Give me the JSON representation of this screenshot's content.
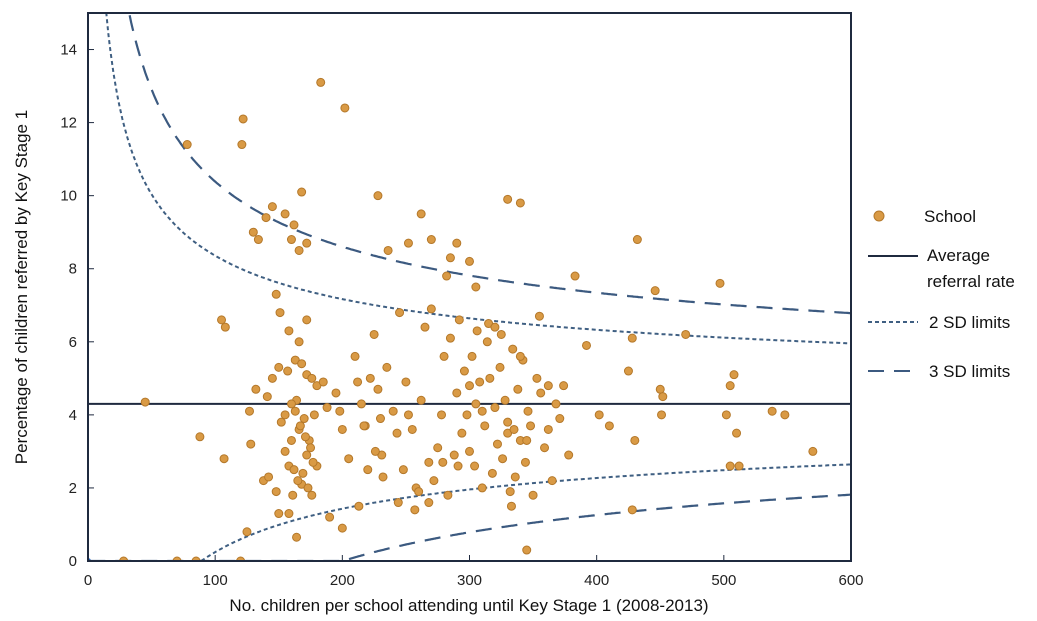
{
  "colors": {
    "point_fill": "#D99A45",
    "point_stroke": "#B4782A",
    "average_line": "#1F2A3F",
    "limit_2sd": "#3F5F82",
    "limit_3sd": "#3C5A80",
    "frame": "#1F2A3F"
  },
  "chart_data": {
    "type": "scatter",
    "xlabel": "No. children per school attending until Key Stage 1 (2008-2013)",
    "ylabel": "Percentage of children referred by Key Stage 1",
    "xlim": [
      0,
      600
    ],
    "ylim": [
      0,
      15
    ],
    "xticks": [
      "0",
      "100",
      "200",
      "300",
      "400",
      "500",
      "600"
    ],
    "yticks": [
      "0",
      "2",
      "4",
      "6",
      "8",
      "10",
      "12",
      "14"
    ],
    "average_rate": 4.3,
    "legend": {
      "position": "right",
      "school": "School",
      "average_line1": "Average",
      "average_line2": "referral rate",
      "sd2": "2 SD limits",
      "sd3": "3 SD limits"
    },
    "series": [
      {
        "name": "School",
        "points": [
          [
            28,
            0
          ],
          [
            70,
            0
          ],
          [
            85,
            0
          ],
          [
            120,
            0
          ],
          [
            78,
            11.4
          ],
          [
            122,
            12.1
          ],
          [
            121,
            11.4
          ],
          [
            183,
            13.1
          ],
          [
            202,
            12.4
          ],
          [
            45,
            4.35
          ],
          [
            88,
            3.4
          ],
          [
            105,
            6.6
          ],
          [
            108,
            6.4
          ],
          [
            107,
            2.8
          ],
          [
            127,
            4.1
          ],
          [
            128,
            3.2
          ],
          [
            132,
            4.7
          ],
          [
            138,
            2.2
          ],
          [
            142,
            2.3
          ],
          [
            148,
            1.9
          ],
          [
            152,
            3.8
          ],
          [
            155,
            3.0
          ],
          [
            158,
            2.6
          ],
          [
            160,
            3.3
          ],
          [
            162,
            2.5
          ],
          [
            164,
            4.4
          ],
          [
            166,
            3.6
          ],
          [
            168,
            2.1
          ],
          [
            170,
            3.9
          ],
          [
            172,
            2.9
          ],
          [
            174,
            3.3
          ],
          [
            176,
            1.8
          ],
          [
            178,
            4.0
          ],
          [
            180,
            2.6
          ],
          [
            160,
            4.3
          ],
          [
            163,
            4.1
          ],
          [
            167,
            3.7
          ],
          [
            171,
            3.4
          ],
          [
            175,
            3.1
          ],
          [
            169,
            2.4
          ],
          [
            173,
            2.0
          ],
          [
            177,
            2.7
          ],
          [
            161,
            1.8
          ],
          [
            165,
            2.2
          ],
          [
            157,
            5.2
          ],
          [
            163,
            5.5
          ],
          [
            168,
            5.4
          ],
          [
            172,
            5.1
          ],
          [
            176,
            5.0
          ],
          [
            145,
            5.0
          ],
          [
            150,
            5.3
          ],
          [
            141,
            4.5
          ],
          [
            180,
            4.8
          ],
          [
            185,
            4.9
          ],
          [
            188,
            4.2
          ],
          [
            155,
            4.0
          ],
          [
            148,
            7.3
          ],
          [
            151,
            6.8
          ],
          [
            158,
            6.3
          ],
          [
            166,
            6.0
          ],
          [
            172,
            6.6
          ],
          [
            130,
            9.0
          ],
          [
            134,
            8.8
          ],
          [
            140,
            9.4
          ],
          [
            145,
            9.7
          ],
          [
            155,
            9.5
          ],
          [
            160,
            8.8
          ],
          [
            162,
            9.2
          ],
          [
            166,
            8.5
          ],
          [
            168,
            10.1
          ],
          [
            172,
            8.7
          ],
          [
            150,
            1.3
          ],
          [
            158,
            1.3
          ],
          [
            164,
            0.65
          ],
          [
            125,
            0.8
          ],
          [
            190,
            1.2
          ],
          [
            195,
            4.6
          ],
          [
            198,
            4.1
          ],
          [
            200,
            3.6
          ],
          [
            205,
            2.8
          ],
          [
            210,
            5.6
          ],
          [
            212,
            4.9
          ],
          [
            215,
            4.3
          ],
          [
            218,
            3.7
          ],
          [
            220,
            2.5
          ],
          [
            222,
            5.0
          ],
          [
            225,
            6.2
          ],
          [
            228,
            4.7
          ],
          [
            230,
            3.9
          ],
          [
            232,
            2.3
          ],
          [
            235,
            5.3
          ],
          [
            240,
            4.1
          ],
          [
            243,
            3.5
          ],
          [
            245,
            6.8
          ],
          [
            248,
            2.5
          ],
          [
            250,
            4.9
          ],
          [
            252,
            4.0
          ],
          [
            255,
            3.6
          ],
          [
            258,
            2.0
          ],
          [
            260,
            1.9
          ],
          [
            262,
            4.4
          ],
          [
            265,
            6.4
          ],
          [
            268,
            2.7
          ],
          [
            270,
            6.9
          ],
          [
            272,
            2.2
          ],
          [
            275,
            3.1
          ],
          [
            278,
            4.0
          ],
          [
            280,
            5.6
          ],
          [
            283,
            1.8
          ],
          [
            285,
            6.1
          ],
          [
            288,
            2.9
          ],
          [
            290,
            4.6
          ],
          [
            292,
            6.6
          ],
          [
            294,
            3.5
          ],
          [
            296,
            5.2
          ],
          [
            298,
            4.0
          ],
          [
            300,
            3.0
          ],
          [
            302,
            5.6
          ],
          [
            304,
            2.6
          ],
          [
            306,
            6.3
          ],
          [
            308,
            4.9
          ],
          [
            310,
            2.0
          ],
          [
            312,
            3.7
          ],
          [
            314,
            6.0
          ],
          [
            316,
            5.0
          ],
          [
            318,
            2.4
          ],
          [
            320,
            4.2
          ],
          [
            322,
            3.2
          ],
          [
            324,
            5.3
          ],
          [
            326,
            2.8
          ],
          [
            328,
            4.4
          ],
          [
            330,
            3.5
          ],
          [
            332,
            1.9
          ],
          [
            334,
            5.8
          ],
          [
            336,
            2.3
          ],
          [
            338,
            4.7
          ],
          [
            340,
            3.3
          ],
          [
            342,
            5.5
          ],
          [
            344,
            2.7
          ],
          [
            346,
            4.1
          ],
          [
            348,
            3.7
          ],
          [
            350,
            1.8
          ],
          [
            353,
            5.0
          ],
          [
            356,
            4.6
          ],
          [
            359,
            3.1
          ],
          [
            362,
            3.6
          ],
          [
            365,
            2.2
          ],
          [
            368,
            4.3
          ],
          [
            371,
            3.9
          ],
          [
            374,
            4.8
          ],
          [
            378,
            2.9
          ],
          [
            300,
            4.8
          ],
          [
            305,
            4.3
          ],
          [
            310,
            4.1
          ],
          [
            315,
            6.5
          ],
          [
            320,
            6.4
          ],
          [
            325,
            6.2
          ],
          [
            330,
            3.8
          ],
          [
            335,
            3.6
          ],
          [
            340,
            5.6
          ],
          [
            345,
            3.3
          ],
          [
            290,
            8.7
          ],
          [
            285,
            8.3
          ],
          [
            282,
            7.8
          ],
          [
            305,
            7.5
          ],
          [
            300,
            8.2
          ],
          [
            270,
            8.8
          ],
          [
            252,
            8.7
          ],
          [
            236,
            8.5
          ],
          [
            262,
            9.5
          ],
          [
            228,
            10.0
          ],
          [
            330,
            9.9
          ],
          [
            340,
            9.8
          ],
          [
            345,
            0.3
          ],
          [
            355,
            6.7
          ],
          [
            362,
            4.8
          ],
          [
            383,
            7.8
          ],
          [
            392,
            5.9
          ],
          [
            402,
            4.0
          ],
          [
            410,
            3.7
          ],
          [
            425,
            5.2
          ],
          [
            428,
            6.1
          ],
          [
            430,
            3.3
          ],
          [
            428,
            1.4
          ],
          [
            432,
            8.8
          ],
          [
            446,
            7.4
          ],
          [
            450,
            4.7
          ],
          [
            451,
            4.0
          ],
          [
            452,
            4.5
          ],
          [
            470,
            6.2
          ],
          [
            497,
            7.6
          ],
          [
            502,
            4.0
          ],
          [
            505,
            4.8
          ],
          [
            508,
            5.1
          ],
          [
            505,
            2.6
          ],
          [
            512,
            2.6
          ],
          [
            510,
            3.5
          ],
          [
            538,
            4.1
          ],
          [
            548,
            4.0
          ],
          [
            570,
            3.0
          ],
          [
            200,
            0.9
          ],
          [
            217,
            3.7
          ],
          [
            231,
            2.9
          ],
          [
            244,
            1.6
          ],
          [
            213,
            1.5
          ],
          [
            226,
            3.0
          ],
          [
            257,
            1.4
          ],
          [
            268,
            1.6
          ],
          [
            279,
            2.7
          ],
          [
            291,
            2.6
          ],
          [
            333,
            1.5
          ]
        ]
      }
    ]
  }
}
